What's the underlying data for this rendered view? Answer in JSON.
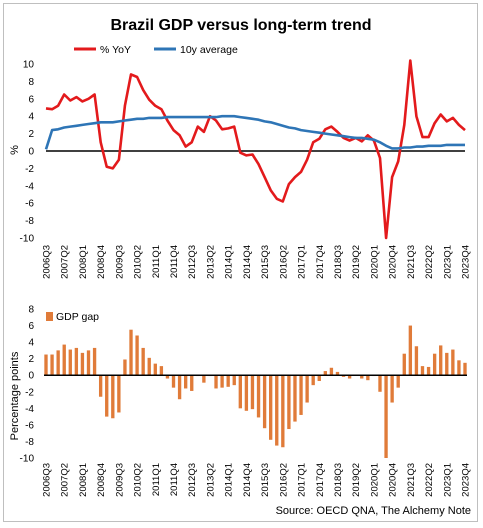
{
  "source": "Source: OECD QNA, The Alchemy Note",
  "colors": {
    "yoy": "#e31a1c",
    "avg": "#2e75b6",
    "gap": "#e07b39",
    "axis": "#000000"
  },
  "chart_data": [
    {
      "type": "line",
      "title": "Brazil GDP versus long-term trend",
      "xlabel": "",
      "ylabel": "%",
      "ylim": [
        -10,
        10
      ],
      "yticks": [
        "-10",
        "-8",
        "-6",
        "-4",
        "-2",
        "0",
        "2",
        "4",
        "6",
        "8",
        "10"
      ],
      "legend_position": "top",
      "x": [
        "2006Q3",
        "2006Q4",
        "2007Q1",
        "2007Q2",
        "2007Q3",
        "2007Q4",
        "2008Q1",
        "2008Q2",
        "2008Q3",
        "2008Q4",
        "2009Q1",
        "2009Q2",
        "2009Q3",
        "2009Q4",
        "2010Q1",
        "2010Q2",
        "2010Q3",
        "2010Q4",
        "2011Q1",
        "2011Q2",
        "2011Q3",
        "2011Q4",
        "2012Q1",
        "2012Q2",
        "2012Q3",
        "2012Q4",
        "2013Q1",
        "2013Q2",
        "2013Q3",
        "2013Q4",
        "2014Q1",
        "2014Q2",
        "2014Q3",
        "2014Q4",
        "2015Q1",
        "2015Q2",
        "2015Q3",
        "2015Q4",
        "2016Q1",
        "2016Q2",
        "2016Q3",
        "2016Q4",
        "2017Q1",
        "2017Q2",
        "2017Q3",
        "2017Q4",
        "2018Q1",
        "2018Q2",
        "2018Q3",
        "2018Q4",
        "2019Q1",
        "2019Q2",
        "2019Q3",
        "2019Q4",
        "2020Q1",
        "2020Q2",
        "2020Q3",
        "2020Q4",
        "2021Q1",
        "2021Q2",
        "2021Q3",
        "2021Q4",
        "2022Q1",
        "2022Q2",
        "2022Q3",
        "2022Q4",
        "2023Q1",
        "2023Q2",
        "2023Q3",
        "2023Q4"
      ],
      "xtick_labels": [
        "2006Q3",
        "2007Q2",
        "2008Q1",
        "2008Q4",
        "2009Q3",
        "2010Q2",
        "2011Q1",
        "2011Q4",
        "2012Q3",
        "2013Q2",
        "2014Q1",
        "2014Q4",
        "2015Q3",
        "2016Q2",
        "2017Q1",
        "2017Q4",
        "2018Q3",
        "2019Q2",
        "2020Q1",
        "2020Q4",
        "2021Q3",
        "2022Q2",
        "2023Q1",
        "2023Q4"
      ],
      "series": [
        {
          "name": "% YoY",
          "values": [
            4.9,
            4.8,
            5.2,
            6.5,
            5.8,
            6.2,
            5.7,
            6.0,
            6.5,
            1.0,
            -1.8,
            -2.0,
            -1.0,
            5.2,
            8.8,
            8.5,
            7.0,
            5.9,
            5.2,
            4.8,
            3.5,
            2.4,
            1.8,
            0.5,
            1.0,
            2.8,
            2.2,
            4.0,
            3.5,
            2.5,
            2.6,
            2.8,
            -0.2,
            -0.5,
            -0.4,
            -1.5,
            -3.0,
            -4.5,
            -5.5,
            -5.8,
            -3.8,
            -3.0,
            -2.4,
            -1.0,
            1.0,
            1.4,
            2.5,
            2.8,
            2.2,
            1.5,
            1.2,
            1.5,
            1.1,
            1.8,
            1.2,
            -0.8,
            -10.0,
            -3.0,
            -1.2,
            3.0,
            12.0,
            4.0,
            1.6,
            1.6,
            3.2,
            4.2,
            3.4,
            3.8,
            3.0,
            2.4
          ]
        },
        {
          "name": "10y average",
          "values": [
            0.2,
            2.4,
            2.5,
            2.7,
            2.8,
            2.9,
            3.0,
            3.1,
            3.2,
            3.3,
            3.3,
            3.3,
            3.4,
            3.5,
            3.6,
            3.7,
            3.7,
            3.8,
            3.8,
            3.8,
            3.9,
            3.9,
            3.9,
            3.9,
            3.9,
            3.9,
            3.9,
            3.9,
            3.9,
            4.0,
            4.0,
            4.0,
            3.9,
            3.8,
            3.7,
            3.6,
            3.4,
            3.3,
            3.1,
            2.9,
            2.7,
            2.6,
            2.4,
            2.3,
            2.2,
            2.1,
            2.0,
            1.9,
            1.8,
            1.7,
            1.6,
            1.5,
            1.5,
            1.4,
            1.3,
            1.0,
            0.6,
            0.3,
            0.3,
            0.4,
            0.4,
            0.5,
            0.5,
            0.6,
            0.6,
            0.6,
            0.7,
            0.7,
            0.7,
            0.7
          ]
        }
      ]
    },
    {
      "type": "bar",
      "title": "",
      "xlabel": "",
      "ylabel": "Percentage points",
      "ylim": [
        -10,
        8
      ],
      "yticks": [
        "-10",
        "-8",
        "-6",
        "-4",
        "-2",
        "0",
        "2",
        "4",
        "6",
        "8"
      ],
      "legend_position": "top-left",
      "x": [
        "2006Q3",
        "2006Q4",
        "2007Q1",
        "2007Q2",
        "2007Q3",
        "2007Q4",
        "2008Q1",
        "2008Q2",
        "2008Q3",
        "2008Q4",
        "2009Q1",
        "2009Q2",
        "2009Q3",
        "2009Q4",
        "2010Q1",
        "2010Q2",
        "2010Q3",
        "2010Q4",
        "2011Q1",
        "2011Q2",
        "2011Q3",
        "2011Q4",
        "2012Q1",
        "2012Q2",
        "2012Q3",
        "2012Q4",
        "2013Q1",
        "2013Q2",
        "2013Q3",
        "2013Q4",
        "2014Q1",
        "2014Q2",
        "2014Q3",
        "2014Q4",
        "2015Q1",
        "2015Q2",
        "2015Q3",
        "2015Q4",
        "2016Q1",
        "2016Q2",
        "2016Q3",
        "2016Q4",
        "2017Q1",
        "2017Q2",
        "2017Q3",
        "2017Q4",
        "2018Q1",
        "2018Q2",
        "2018Q3",
        "2018Q4",
        "2019Q1",
        "2019Q2",
        "2019Q3",
        "2019Q4",
        "2020Q1",
        "2020Q2",
        "2020Q3",
        "2020Q4",
        "2021Q1",
        "2021Q2",
        "2021Q3",
        "2021Q4",
        "2022Q1",
        "2022Q2",
        "2022Q3",
        "2022Q4",
        "2023Q1",
        "2023Q2",
        "2023Q3",
        "2023Q4"
      ],
      "xtick_labels": [
        "2006Q3",
        "2007Q2",
        "2008Q1",
        "2008Q4",
        "2009Q3",
        "2010Q2",
        "2011Q1",
        "2011Q4",
        "2012Q3",
        "2013Q2",
        "2014Q1",
        "2014Q4",
        "2015Q3",
        "2016Q2",
        "2017Q1",
        "2017Q4",
        "2018Q3",
        "2019Q2",
        "2020Q1",
        "2020Q4",
        "2021Q3",
        "2022Q2",
        "2023Q1",
        "2023Q4"
      ],
      "series": [
        {
          "name": "GDP gap",
          "values": [
            2.5,
            2.5,
            3.0,
            3.7,
            3.1,
            3.3,
            2.7,
            3.0,
            3.3,
            -2.6,
            -5.0,
            -5.2,
            -4.5,
            1.9,
            5.5,
            4.8,
            3.3,
            2.1,
            1.4,
            1.1,
            -0.4,
            -1.5,
            -2.9,
            -1.6,
            -1.9,
            -0.1,
            -0.9,
            -0.1,
            -1.6,
            -1.5,
            -1.4,
            -1.2,
            -4.0,
            -4.3,
            -4.1,
            -5.1,
            -6.4,
            -7.8,
            -8.5,
            -8.7,
            -6.5,
            -5.6,
            -4.8,
            -3.3,
            -1.2,
            -0.7,
            0.5,
            0.9,
            0.4,
            -0.2,
            -0.4,
            0.0,
            -0.4,
            -0.6,
            -0.1,
            -2.0,
            -10.0,
            -3.3,
            -1.5,
            2.6,
            6.0,
            3.5,
            1.1,
            1.0,
            2.6,
            3.6,
            2.7,
            3.1,
            1.8,
            1.5
          ]
        }
      ]
    }
  ]
}
